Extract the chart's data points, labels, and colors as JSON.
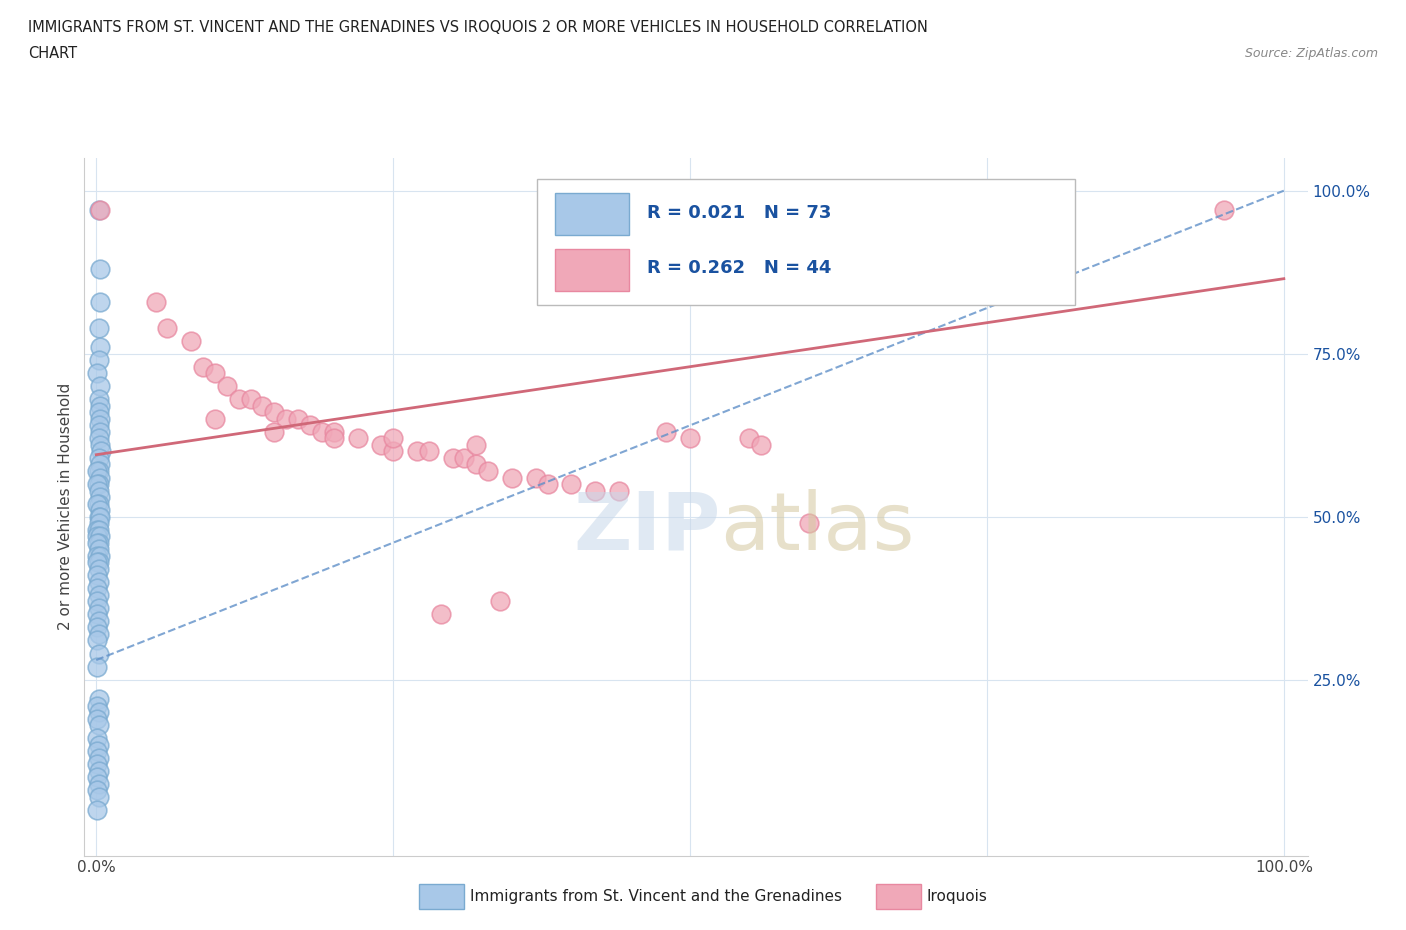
{
  "title_line1": "IMMIGRANTS FROM ST. VINCENT AND THE GRENADINES VS IROQUOIS 2 OR MORE VEHICLES IN HOUSEHOLD CORRELATION",
  "title_line2": "CHART",
  "source": "Source: ZipAtlas.com",
  "ylabel": "2 or more Vehicles in Household",
  "xlim": [
    0.0,
    1.0
  ],
  "ylim": [
    0.0,
    1.0
  ],
  "xticks": [
    0.0,
    0.25,
    0.5,
    0.75,
    1.0
  ],
  "xtick_labels": [
    "0.0%",
    "",
    "",
    "",
    "100.0%"
  ],
  "yticks": [
    0.25,
    0.5,
    0.75,
    1.0
  ],
  "ytick_labels": [
    "25.0%",
    "50.0%",
    "75.0%",
    "100.0%"
  ],
  "blue_R": 0.021,
  "blue_N": 73,
  "pink_R": 0.262,
  "pink_N": 44,
  "blue_color": "#a8c8e8",
  "pink_color": "#f0a8b8",
  "blue_edge_color": "#7aaad0",
  "pink_edge_color": "#e888a0",
  "blue_line_color": "#6090c8",
  "pink_line_color": "#d06878",
  "legend_R_color": "#1a52a0",
  "grid_color": "#d8e4f0",
  "blue_trend_x0": 0.0,
  "blue_trend_y0": 0.28,
  "blue_trend_x1": 1.0,
  "blue_trend_y1": 1.0,
  "pink_trend_x0": 0.0,
  "pink_trend_y0": 0.595,
  "pink_trend_x1": 1.0,
  "pink_trend_y1": 0.865,
  "blue_scatter_x": [
    0.002,
    0.003,
    0.003,
    0.002,
    0.003,
    0.002,
    0.001,
    0.003,
    0.002,
    0.003,
    0.002,
    0.003,
    0.002,
    0.003,
    0.002,
    0.003,
    0.004,
    0.002,
    0.003,
    0.002,
    0.001,
    0.003,
    0.002,
    0.001,
    0.002,
    0.003,
    0.002,
    0.001,
    0.003,
    0.002,
    0.003,
    0.002,
    0.001,
    0.002,
    0.001,
    0.003,
    0.002,
    0.001,
    0.002,
    0.001,
    0.003,
    0.002,
    0.001,
    0.002,
    0.001,
    0.002,
    0.001,
    0.002,
    0.001,
    0.002,
    0.001,
    0.002,
    0.001,
    0.002,
    0.001,
    0.002,
    0.001,
    0.002,
    0.001,
    0.002,
    0.001,
    0.002,
    0.001,
    0.002,
    0.001,
    0.002,
    0.001,
    0.002,
    0.001,
    0.002,
    0.001,
    0.002,
    0.001
  ],
  "blue_scatter_y": [
    0.97,
    0.88,
    0.83,
    0.79,
    0.76,
    0.74,
    0.72,
    0.7,
    0.68,
    0.67,
    0.66,
    0.65,
    0.64,
    0.63,
    0.62,
    0.61,
    0.6,
    0.59,
    0.58,
    0.57,
    0.57,
    0.56,
    0.55,
    0.55,
    0.54,
    0.53,
    0.52,
    0.52,
    0.51,
    0.5,
    0.5,
    0.49,
    0.48,
    0.48,
    0.47,
    0.47,
    0.46,
    0.46,
    0.45,
    0.44,
    0.44,
    0.43,
    0.43,
    0.42,
    0.41,
    0.4,
    0.39,
    0.38,
    0.37,
    0.36,
    0.35,
    0.34,
    0.33,
    0.32,
    0.31,
    0.29,
    0.27,
    0.22,
    0.21,
    0.2,
    0.19,
    0.18,
    0.16,
    0.15,
    0.14,
    0.13,
    0.12,
    0.11,
    0.1,
    0.09,
    0.08,
    0.07,
    0.05
  ],
  "pink_scatter_x": [
    0.003,
    0.05,
    0.08,
    0.09,
    0.1,
    0.11,
    0.12,
    0.13,
    0.14,
    0.15,
    0.16,
    0.17,
    0.18,
    0.19,
    0.2,
    0.22,
    0.24,
    0.25,
    0.27,
    0.28,
    0.3,
    0.31,
    0.32,
    0.33,
    0.35,
    0.37,
    0.38,
    0.4,
    0.42,
    0.44,
    0.48,
    0.5,
    0.55,
    0.56,
    0.6,
    0.95,
    0.06,
    0.1,
    0.15,
    0.2,
    0.25,
    0.32,
    0.29,
    0.34
  ],
  "pink_scatter_y": [
    0.97,
    0.83,
    0.77,
    0.73,
    0.72,
    0.7,
    0.68,
    0.68,
    0.67,
    0.66,
    0.65,
    0.65,
    0.64,
    0.63,
    0.63,
    0.62,
    0.61,
    0.6,
    0.6,
    0.6,
    0.59,
    0.59,
    0.58,
    0.57,
    0.56,
    0.56,
    0.55,
    0.55,
    0.54,
    0.54,
    0.63,
    0.62,
    0.62,
    0.61,
    0.49,
    0.97,
    0.79,
    0.65,
    0.63,
    0.62,
    0.62,
    0.61,
    0.35,
    0.37
  ]
}
